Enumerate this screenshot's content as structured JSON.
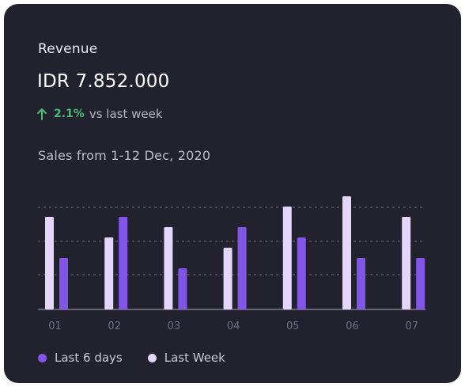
{
  "card": {
    "title": "Revenue",
    "amount": "IDR 7.852.000",
    "change_value": "2.1%",
    "change_text": "vs last week",
    "subtitle": "Sales from 1-12 Dec, 2020"
  },
  "colors": {
    "background": "#22212e",
    "last6": "#8155e8",
    "lastWeek": "#e3d5fb",
    "positive": "#3fc275"
  },
  "icons": {
    "change": "arrow-up-icon"
  },
  "chart_data": {
    "type": "bar",
    "categories": [
      "01",
      "02",
      "03",
      "04",
      "05",
      "06",
      "07"
    ],
    "series": [
      {
        "name": "Last Week",
        "values": [
          90,
          70,
          80,
          60,
          100,
          110,
          90
        ]
      },
      {
        "name": "Last 6 days",
        "values": [
          50,
          90,
          40,
          80,
          70,
          50,
          50
        ]
      }
    ],
    "ylim": [
      0,
      110
    ],
    "grid": true,
    "legend": "bottom-left"
  },
  "legend": {
    "last6_label": "Last 6 days",
    "lastWeek_label": "Last Week"
  }
}
